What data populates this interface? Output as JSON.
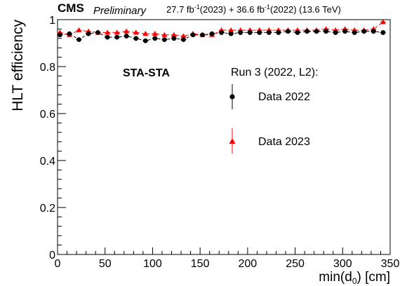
{
  "chart_data": {
    "type": "scatter",
    "title": "",
    "header": {
      "experiment": "CMS",
      "status": "Preliminary",
      "lumi_prefix_2023": "27.7 fb",
      "lumi_exp": "-1",
      "lumi_suffix_2023": "(2023) + 36.6 fb",
      "lumi_suffix_2022": "(2022) (13.6 TeV)"
    },
    "annotation": "STA-STA",
    "legend": {
      "header": "Run 3 (2022, L2):",
      "position": "center-right"
    },
    "xlabel": {
      "prefix": "min(d",
      "sub": "0",
      "suffix": ") [cm]"
    },
    "ylabel": "HLT efficiency",
    "xlim": [
      0,
      350
    ],
    "ylim": [
      0,
      1
    ],
    "xticks": [
      "0",
      "50",
      "100",
      "150",
      "200",
      "250",
      "300",
      "350"
    ],
    "yticks": [
      "0",
      "0.2",
      "0.4",
      "0.6",
      "0.8",
      "1"
    ],
    "grid": false,
    "series": [
      {
        "name": "Data 2022",
        "color": "#000000",
        "marker": "circle",
        "x": [
          2.5,
          12.5,
          22.5,
          32.5,
          42.5,
          52.5,
          62.5,
          72.5,
          82.5,
          92.5,
          102.5,
          112.5,
          122.5,
          132.5,
          142.5,
          152.5,
          162.5,
          172.5,
          182.5,
          192.5,
          202.5,
          212.5,
          222.5,
          232.5,
          242.5,
          252.5,
          262.5,
          272.5,
          282.5,
          292.5,
          302.5,
          312.5,
          322.5,
          332.5,
          342.5
        ],
        "y": [
          0.935,
          0.94,
          0.915,
          0.94,
          0.945,
          0.925,
          0.925,
          0.93,
          0.92,
          0.91,
          0.92,
          0.915,
          0.92,
          0.915,
          0.935,
          0.935,
          0.94,
          0.945,
          0.94,
          0.945,
          0.945,
          0.945,
          0.945,
          0.945,
          0.95,
          0.945,
          0.95,
          0.95,
          0.95,
          0.945,
          0.95,
          0.945,
          0.95,
          0.95,
          0.945
        ]
      },
      {
        "name": "Data 2023",
        "color": "#ff0000",
        "marker": "triangle",
        "x": [
          2.5,
          12.5,
          22.5,
          32.5,
          42.5,
          52.5,
          62.5,
          72.5,
          82.5,
          92.5,
          102.5,
          112.5,
          122.5,
          132.5,
          142.5,
          152.5,
          162.5,
          172.5,
          182.5,
          192.5,
          202.5,
          212.5,
          222.5,
          232.5,
          242.5,
          252.5,
          262.5,
          272.5,
          282.5,
          292.5,
          302.5,
          312.5,
          322.5,
          332.5,
          342.5
        ],
        "y": [
          0.945,
          0.935,
          0.955,
          0.95,
          0.945,
          0.945,
          0.945,
          0.95,
          0.945,
          0.94,
          0.94,
          0.935,
          0.935,
          0.93,
          0.94,
          0.935,
          0.935,
          0.955,
          0.955,
          0.955,
          0.955,
          0.955,
          0.955,
          0.955,
          0.955,
          0.955,
          0.955,
          0.955,
          0.96,
          0.955,
          0.96,
          0.955,
          0.955,
          0.96,
          0.99
        ]
      }
    ]
  }
}
